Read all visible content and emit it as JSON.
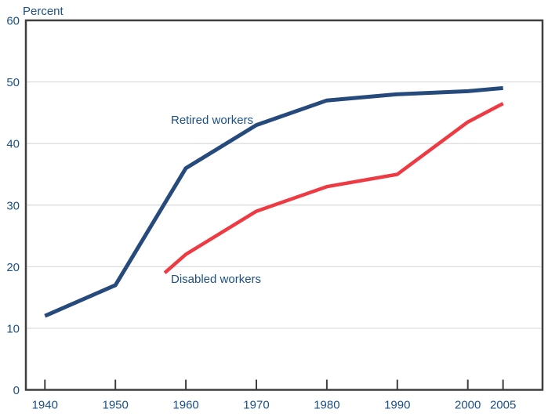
{
  "page": {
    "background": "#ffffff"
  },
  "colors": {
    "background": "#ffffff",
    "axis_frame": "#3f3f3f",
    "gridline": "#d9d9d9",
    "text": "#1c5085",
    "retired_line": "#264a7c",
    "disabled_line": "#ee3b43"
  },
  "chart": {
    "y_axis_title": "Percent",
    "series_labels": {
      "retired": "Retired workers",
      "disabled": "Disabled workers"
    }
  },
  "chart_data": {
    "type": "line",
    "title": "",
    "ylabel": "Percent",
    "xlabel": "",
    "ylim": [
      0,
      60
    ],
    "xlim": [
      1937.3,
      2010.6
    ],
    "y_ticks": [
      0,
      10,
      20,
      30,
      40,
      50,
      60
    ],
    "y_gridlines": [
      10,
      20,
      30,
      40,
      50
    ],
    "x_ticks": [
      1940,
      1950,
      1960,
      1970,
      1980,
      1990,
      2000,
      2005
    ],
    "grid": "horizontal-only",
    "legend": "inline-text-labels",
    "series": [
      {
        "name": "Retired workers",
        "color": "#264a7c",
        "points": [
          [
            1940,
            12
          ],
          [
            1950,
            17
          ],
          [
            1960,
            36
          ],
          [
            1970,
            43
          ],
          [
            1980,
            47
          ],
          [
            1990,
            48
          ],
          [
            2000,
            48.5
          ],
          [
            2005,
            49
          ]
        ]
      },
      {
        "name": "Disabled workers",
        "color": "#ee3b43",
        "points": [
          [
            1957,
            19
          ],
          [
            1960,
            22
          ],
          [
            1970,
            29
          ],
          [
            1980,
            33
          ],
          [
            1990,
            35
          ],
          [
            2000,
            43.5
          ],
          [
            2005,
            46.5
          ]
        ]
      }
    ]
  }
}
